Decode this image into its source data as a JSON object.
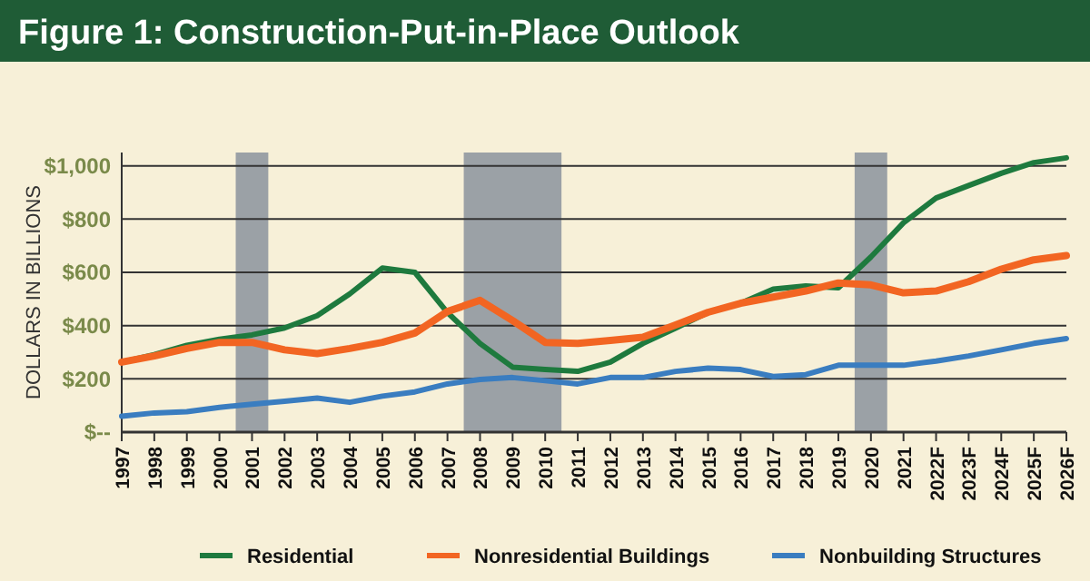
{
  "chart_data": {
    "type": "line",
    "title": "Figure 1: Construction-Put-in-Place Outlook",
    "ylabel": "DOLLARS IN BILLIONS",
    "categories": [
      "1997",
      "1998",
      "1999",
      "2000",
      "2001",
      "2002",
      "2003",
      "2004",
      "2005",
      "2006",
      "2007",
      "2008",
      "2009",
      "2010",
      "2011",
      "2012",
      "2013",
      "2014",
      "2015",
      "2016",
      "2017",
      "2018",
      "2019",
      "2020",
      "2021",
      "2022F",
      "2023F",
      "2024F",
      "2025F",
      "2026F"
    ],
    "series": [
      {
        "name": "Residential",
        "color": "#1e7a3e",
        "values": [
          263,
          291,
          326,
          349,
          365,
          391,
          437,
          519,
          616,
          600,
          449,
          333,
          244,
          235,
          228,
          263,
          333,
          390,
          450,
          484,
          537,
          549,
          542,
          658,
          786,
          879,
          926,
          972,
          1012,
          1030
        ]
      },
      {
        "name": "Nonresidential Buildings",
        "color": "#f26522",
        "values": [
          263,
          286,
          314,
          337,
          337,
          309,
          295,
          314,
          337,
          372,
          453,
          495,
          419,
          337,
          333,
          344,
          356,
          402,
          450,
          484,
          507,
          530,
          560,
          553,
          523,
          530,
          565,
          612,
          647,
          663
        ]
      },
      {
        "name": "Nonbuilding Structures",
        "color": "#3a7dc0",
        "values": [
          60,
          72,
          77,
          93,
          105,
          116,
          128,
          112,
          135,
          151,
          181,
          198,
          205,
          193,
          181,
          205,
          205,
          228,
          240,
          235,
          209,
          216,
          251,
          251,
          251,
          267,
          286,
          309,
          333,
          351
        ]
      }
    ],
    "ylim": [
      0,
      1050
    ],
    "yticks": [
      {
        "value": 0,
        "label": "$--"
      },
      {
        "value": 200,
        "label": "$200"
      },
      {
        "value": 400,
        "label": "$400"
      },
      {
        "value": 600,
        "label": "$600"
      },
      {
        "value": 800,
        "label": "$800"
      },
      {
        "value": 1000,
        "label": "$1,000"
      }
    ],
    "bands": [
      {
        "axis": "x",
        "from": "2001",
        "to": "2001",
        "color": "#9ba1a6"
      },
      {
        "axis": "x",
        "from": "2008",
        "to": "2010",
        "color": "#9ba1a6"
      },
      {
        "axis": "x",
        "from": "2020",
        "to": "2020",
        "color": "#9ba1a6"
      }
    ],
    "grid": "y",
    "legend": "bottom",
    "marker": "none",
    "line_style": "solid"
  }
}
